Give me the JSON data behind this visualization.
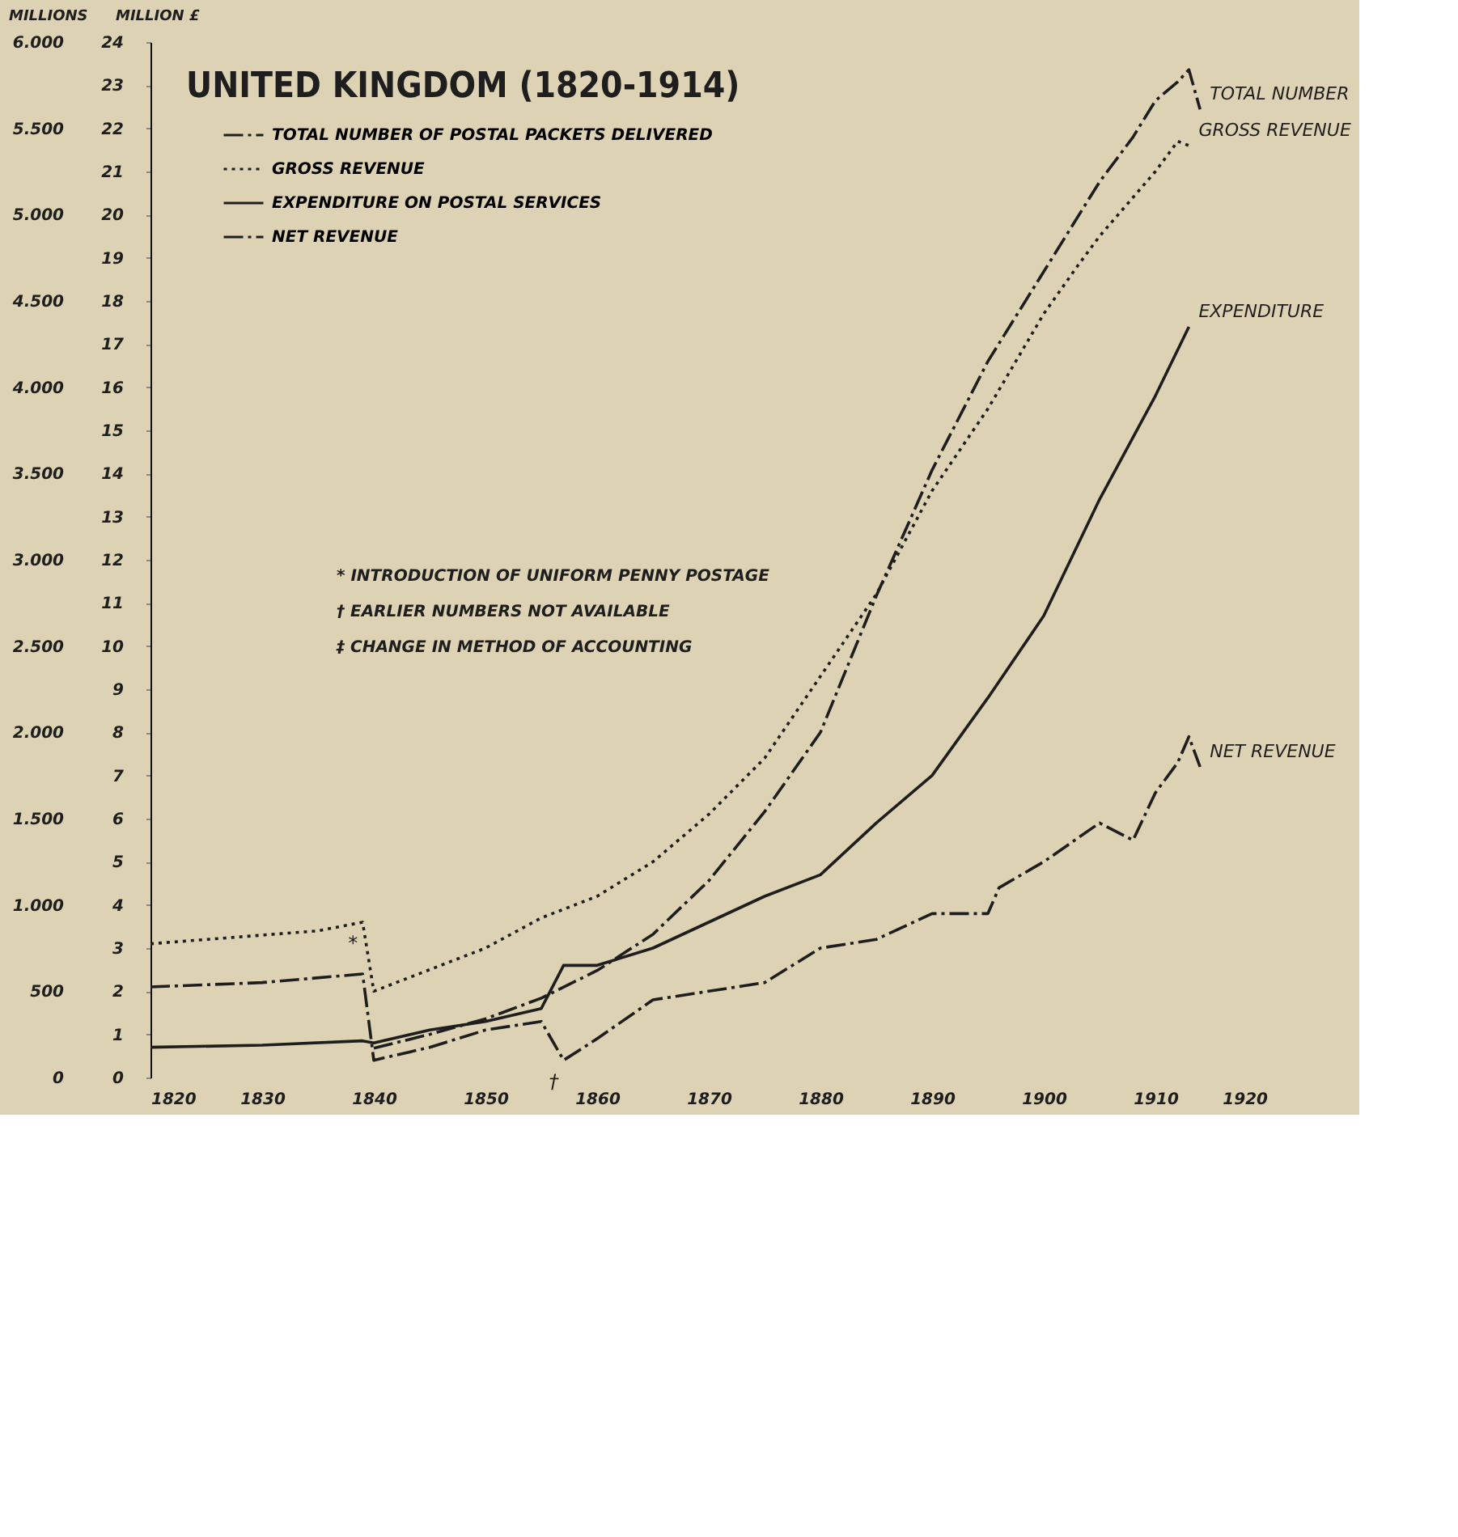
{
  "chart_data": {
    "type": "line",
    "title": "UNITED KINGDOM (1820-1914)",
    "ylabel": "MILLION £",
    "y2label": "MILLIONS",
    "xlim": [
      1820,
      1920
    ],
    "xticks": [
      1820,
      1830,
      1840,
      1850,
      1860,
      1870,
      1880,
      1890,
      1900,
      1910,
      1920
    ],
    "ylim": [
      0,
      24
    ],
    "yticks": [
      0,
      1,
      2,
      3,
      4,
      5,
      6,
      7,
      8,
      9,
      10,
      11,
      12,
      13,
      14,
      15,
      16,
      17,
      18,
      19,
      20,
      21,
      22,
      23,
      24
    ],
    "y2lim": [
      0,
      6000
    ],
    "y2ticks": [
      0,
      500,
      {
        "value": 1000,
        "label": "1.000"
      },
      {
        "value": 1500,
        "label": "1.500"
      },
      {
        "value": 2000,
        "label": "2.000"
      },
      {
        "value": 2500,
        "label": "2.500"
      },
      {
        "value": 3000,
        "label": "3.000"
      },
      {
        "value": 3500,
        "label": "3.500"
      },
      {
        "value": 4000,
        "label": "4.000"
      },
      {
        "value": 4500,
        "label": "4.500"
      },
      {
        "value": 5000,
        "label": "5.000"
      },
      {
        "value": 5500,
        "label": "5.500"
      },
      {
        "value": 6000,
        "label": "6.000"
      }
    ],
    "grid": false,
    "legend": "top left",
    "marker": "none",
    "series": [
      {
        "name": "TOTAL NUMBER OF POSTAL PACKETS DELIVERED",
        "color": "#1e1e1e",
        "line_style": "dashed",
        "axis": "y2",
        "x": [
          1840,
          1845,
          1850,
          1855,
          1860,
          1865,
          1870,
          1875,
          1880,
          1885,
          1890,
          1895,
          1900,
          1905,
          1908,
          1910,
          1912,
          1913,
          1914
        ],
        "values": [
          170,
          250,
          340,
          460,
          620,
          830,
          1140,
          1540,
          2000,
          2790,
          3520,
          4150,
          4670,
          5190,
          5450,
          5660,
          5770,
          5840,
          5610
        ]
      },
      {
        "name": "GROSS REVENUE",
        "color": "#1e1e1e",
        "line_style": "dotted",
        "x": [
          1820,
          1825,
          1830,
          1835,
          1839,
          1840,
          1845,
          1850,
          1855,
          1860,
          1865,
          1870,
          1875,
          1880,
          1885,
          1890,
          1895,
          1900,
          1903,
          1905,
          1908,
          1910,
          1912,
          1913
        ],
        "values": [
          3.1,
          3.2,
          3.3,
          3.4,
          3.6,
          2.0,
          2.5,
          3.0,
          3.7,
          4.2,
          5.0,
          6.1,
          7.4,
          9.3,
          11.2,
          13.6,
          15.5,
          17.7,
          18.8,
          19.5,
          20.4,
          21.0,
          21.7,
          21.6
        ]
      },
      {
        "name": "EXPENDITURE ON POSTAL SERVICES",
        "color": "#1e1e1e",
        "line_style": "solid",
        "x": [
          1820,
          1830,
          1839,
          1840,
          1845,
          1850,
          1855,
          1857,
          1860,
          1865,
          1870,
          1875,
          1880,
          1885,
          1890,
          1895,
          1900,
          1905,
          1910,
          1913
        ],
        "values": [
          0.7,
          0.75,
          0.85,
          0.8,
          1.1,
          1.3,
          1.6,
          2.6,
          2.6,
          3.0,
          3.6,
          4.2,
          4.7,
          5.9,
          7.0,
          8.8,
          10.7,
          13.4,
          15.8,
          17.4
        ]
      },
      {
        "name": "NET REVENUE",
        "color": "#1e1e1e",
        "line_style": "dashed",
        "x": [
          1820,
          1830,
          1839,
          1840,
          1845,
          1850,
          1855,
          1857,
          1860,
          1865,
          1870,
          1875,
          1880,
          1885,
          1890,
          1895,
          1896,
          1900,
          1905,
          1908,
          1910,
          1912,
          1913,
          1914
        ],
        "values": [
          2.1,
          2.2,
          2.4,
          0.4,
          0.7,
          1.1,
          1.3,
          0.4,
          0.9,
          1.8,
          2.0,
          2.2,
          3.0,
          3.2,
          3.8,
          3.8,
          4.4,
          5.0,
          5.9,
          5.5,
          6.6,
          7.3,
          7.9,
          7.2
        ]
      }
    ],
    "annotations": [
      "TOTAL NUMBER",
      "GROSS REVENUE",
      "EXPENDITURE",
      "NET REVENUE",
      {
        "text": "*",
        "x": 1839,
        "y": 3.6
      },
      {
        "text": "†",
        "x": 1857,
        "y": 0.4
      },
      "* INTRODUCTION OF UNIFORM PENNY POSTAGE",
      "† EARLIER NUMBERS NOT AVAILABLE",
      "‡ CHANGE IN METHOD OF ACCOUNTING"
    ]
  }
}
